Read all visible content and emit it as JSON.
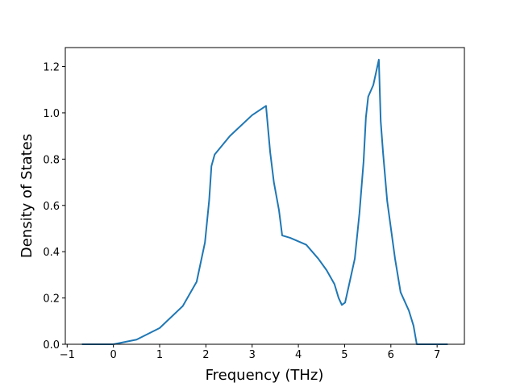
{
  "chart_data": {
    "type": "line",
    "x_label": "Frequency (THz)",
    "y_label": "Density of States",
    "x": [
      -0.68,
      0,
      0.5,
      1,
      1.5,
      1.8,
      1.98,
      2.07,
      2.12,
      2.19,
      2.52,
      3.0,
      3.3,
      3.39,
      3.47,
      3.58,
      3.65,
      3.82,
      4.17,
      4.43,
      4.61,
      4.78,
      4.87,
      4.94,
      5.01,
      5.11,
      5.22,
      5.32,
      5.41,
      5.46,
      5.51,
      5.62,
      5.74,
      5.78,
      5.83,
      5.92,
      6.09,
      6.21,
      6.39,
      6.49,
      6.56,
      7.23
    ],
    "series": [
      {
        "color": "#1f77b4",
        "values": [
          0,
          0,
          0.02,
          0.07,
          0.165,
          0.27,
          0.44,
          0.62,
          0.77,
          0.82,
          0.9,
          0.99,
          1.03,
          0.83,
          0.7,
          0.58,
          0.47,
          0.46,
          0.43,
          0.37,
          0.32,
          0.26,
          0.2,
          0.17,
          0.18,
          0.27,
          0.37,
          0.565,
          0.79,
          0.98,
          1.07,
          1.12,
          1.23,
          0.965,
          0.83,
          0.62,
          0.37,
          0.225,
          0.145,
          0.08,
          0,
          0
        ]
      }
    ],
    "xlim": [
      -1.04,
      7.59
    ],
    "ylim": [
      0,
      1.282
    ],
    "xticks": [
      {
        "value": -1,
        "label": "−1"
      },
      0,
      1,
      2,
      3,
      4,
      5,
      6,
      7
    ],
    "yticks": [
      {
        "value": 0,
        "label": "0.0"
      },
      0.2,
      0.4,
      0.6,
      0.8,
      {
        "value": 1,
        "label": "1.0"
      },
      1.2
    ]
  }
}
